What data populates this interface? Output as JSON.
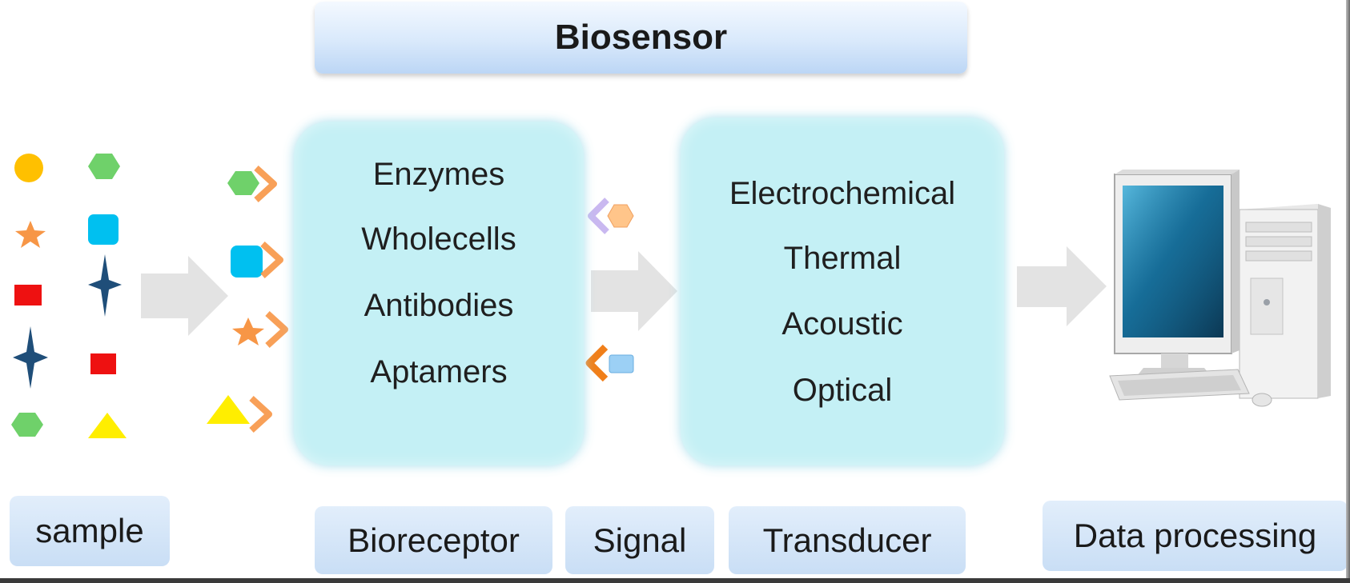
{
  "title": "Biosensor",
  "bioreceptor_panel": {
    "items": [
      "Enzymes",
      "Wholecells",
      "Antibodies",
      "Aptamers"
    ]
  },
  "transducer_panel": {
    "items": [
      "Electrochemical",
      "Thermal",
      "Acoustic",
      "Optical"
    ]
  },
  "stage_labels": {
    "sample": "sample",
    "bioreceptor": "Bioreceptor",
    "signal": "Signal",
    "transducer": "Transducer",
    "data_processing": "Data processing"
  },
  "colors": {
    "title_bar": "#d9e9fb",
    "panel": "#c4f0f5",
    "stage_label": "#c9def5",
    "flow_arrow": "#e3e3e3",
    "yellow": "#ffc000",
    "green": "#6fd16a",
    "orange": "#f79646",
    "cyan": "#00c0f0",
    "red": "#ee1111",
    "navy": "#1f4e79",
    "lemon": "#ffee00"
  }
}
